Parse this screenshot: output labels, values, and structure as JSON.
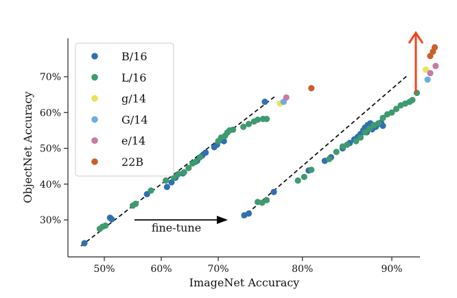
{
  "chart_data": {
    "type": "scatter",
    "xlabel": "ImageNet Accuracy",
    "ylabel": "ObjectNet Accuracy",
    "x_ticks": [
      {
        "value": 50,
        "label": "50%",
        "panel": "left"
      },
      {
        "value": 60,
        "label": "60%",
        "panel": "left"
      },
      {
        "value": 70,
        "label": "70%",
        "panel": "left"
      },
      {
        "value": 80,
        "label": "80%",
        "panel": "right"
      },
      {
        "value": 90,
        "label": "90%",
        "panel": "right"
      }
    ],
    "y_ticks": [
      {
        "value": 30,
        "label": "30%"
      },
      {
        "value": 40,
        "label": "40%"
      },
      {
        "value": 50,
        "label": "50%"
      },
      {
        "value": 60,
        "label": "60%"
      },
      {
        "value": 70,
        "label": "70%"
      }
    ],
    "ylim": [
      20,
      82
    ],
    "grid": false,
    "legend_placement": "top-left",
    "annotations": [
      {
        "text": "fine-tune"
      }
    ],
    "series": [
      {
        "name": "B/16",
        "color": "#3070ad",
        "points": [
          [
            46.5,
            23.5
          ],
          [
            51.3,
            30.2
          ],
          [
            51.0,
            30.6
          ],
          [
            57.5,
            37.2
          ],
          [
            61.0,
            39.2
          ],
          [
            61.8,
            40.5
          ],
          [
            62.5,
            41.8
          ],
          [
            63.8,
            43.0
          ],
          [
            66.3,
            46.5
          ],
          [
            67.2,
            48.0
          ],
          [
            67.8,
            48.8
          ],
          [
            69.3,
            50.3
          ],
          [
            69.8,
            51.0
          ],
          [
            70.5,
            52.3
          ],
          [
            71.0,
            52.0
          ],
          [
            75.8,
            63.0
          ],
          [
            73.5,
            31.3
          ],
          [
            74.0,
            31.8
          ],
          [
            76.8,
            37.8
          ],
          [
            80.7,
            43.8
          ],
          [
            82.5,
            46.5
          ],
          [
            83.2,
            47.5
          ],
          [
            84.5,
            50.0
          ],
          [
            85.3,
            51.5
          ],
          [
            85.8,
            52.5
          ],
          [
            86.2,
            53.2
          ],
          [
            86.5,
            54.0
          ],
          [
            86.8,
            55.0
          ],
          [
            87.0,
            55.8
          ],
          [
            87.3,
            56.5
          ],
          [
            87.6,
            57.0
          ],
          [
            87.2,
            54.5
          ],
          [
            87.8,
            55.3
          ],
          [
            88.2,
            56.0
          ],
          [
            88.5,
            56.8
          ],
          [
            88.8,
            57.2
          ],
          [
            89.0,
            56.3
          ]
        ]
      },
      {
        "name": "L/16",
        "color": "#3e9a6f",
        "points": [
          [
            49.2,
            27.5
          ],
          [
            49.7,
            28.1
          ],
          [
            50.2,
            28.4
          ],
          [
            55.0,
            34.0
          ],
          [
            55.5,
            34.5
          ],
          [
            58.2,
            38.2
          ],
          [
            60.8,
            41.0
          ],
          [
            62.2,
            42.0
          ],
          [
            63.0,
            42.8
          ],
          [
            64.0,
            43.3
          ],
          [
            64.8,
            44.5
          ],
          [
            65.5,
            45.8
          ],
          [
            66.0,
            46.2
          ],
          [
            66.8,
            47.5
          ],
          [
            70.0,
            52.0
          ],
          [
            70.5,
            53.0
          ],
          [
            71.2,
            53.5
          ],
          [
            71.6,
            54.4
          ],
          [
            72.0,
            55.0
          ],
          [
            72.6,
            55.2
          ],
          [
            73.4,
            56.0
          ],
          [
            74.0,
            56.8
          ],
          [
            74.6,
            57.5
          ],
          [
            75.0,
            58.0
          ],
          [
            75.6,
            58.2
          ],
          [
            76.0,
            58.2
          ],
          [
            75.0,
            35.0
          ],
          [
            75.5,
            34.8
          ],
          [
            76.0,
            35.5
          ],
          [
            79.5,
            41.0
          ],
          [
            80.2,
            42.0
          ],
          [
            81.0,
            44.0
          ],
          [
            83.0,
            47.0
          ],
          [
            83.8,
            49.0
          ],
          [
            84.5,
            50.5
          ],
          [
            85.0,
            51.0
          ],
          [
            86.0,
            52.0
          ],
          [
            86.5,
            53.0
          ],
          [
            87.0,
            54.5
          ],
          [
            87.5,
            55.5
          ],
          [
            88.0,
            56.5
          ],
          [
            88.5,
            57.0
          ],
          [
            89.0,
            58.5
          ],
          [
            89.5,
            59.5
          ],
          [
            90.0,
            60.0
          ],
          [
            90.5,
            61.0
          ],
          [
            91.0,
            62.0
          ],
          [
            91.5,
            62.5
          ],
          [
            92.0,
            63.0
          ],
          [
            92.3,
            63.5
          ],
          [
            92.8,
            65.5
          ]
        ]
      },
      {
        "name": "g/14",
        "color": "#e9e25e",
        "points": [
          [
            77.5,
            62.5
          ],
          [
            93.8,
            72.0
          ]
        ]
      },
      {
        "name": "G/14",
        "color": "#6aaee0",
        "points": [
          [
            77.9,
            63.0
          ],
          [
            94.0,
            69.2
          ]
        ]
      },
      {
        "name": "e/14",
        "color": "#c979a8",
        "points": [
          [
            78.2,
            64.2
          ],
          [
            94.3,
            71.0
          ],
          [
            94.9,
            73.0
          ]
        ]
      },
      {
        "name": "22B",
        "color": "#c8602a",
        "points": [
          [
            81.0,
            66.8
          ],
          [
            94.3,
            75.8
          ],
          [
            94.6,
            77.0
          ],
          [
            94.8,
            78.2
          ]
        ]
      }
    ]
  }
}
